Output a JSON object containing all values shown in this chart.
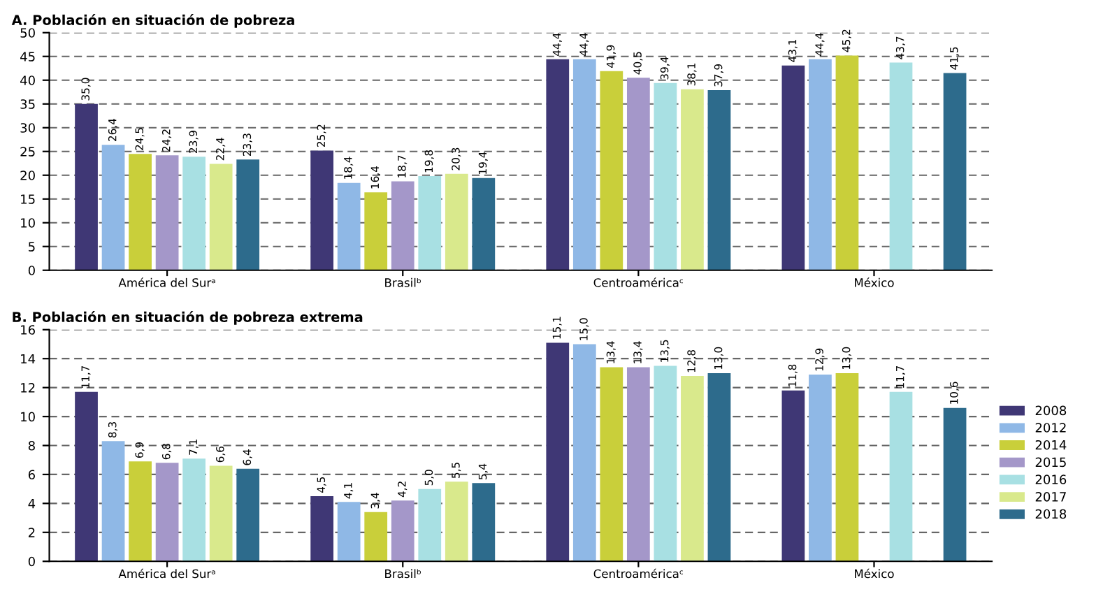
{
  "chart_data": [
    {
      "type": "bar",
      "title": "A. Población en situación de pobreza",
      "categories": [
        "América del Surᵃ",
        "Brasilᵇ",
        "Centroaméricaᶜ",
        "México"
      ],
      "ylim": [
        0,
        50
      ],
      "yticks": [
        0,
        5,
        10,
        15,
        20,
        25,
        30,
        35,
        40,
        45,
        50
      ],
      "grid": "y",
      "legend": "right",
      "series": [
        {
          "name": "2008",
          "color": "#3f3775",
          "values": [
            35.0,
            25.2,
            44.4,
            43.1
          ],
          "value_labels": [
            "35,0",
            "25,2",
            "44,4",
            "43,1"
          ]
        },
        {
          "name": "2012",
          "color": "#8fb8e6",
          "values": [
            26.4,
            18.4,
            44.4,
            44.4
          ],
          "value_labels": [
            "26,4",
            "18,4",
            "44,4",
            "44,4"
          ]
        },
        {
          "name": "2014",
          "color": "#c9cf3a",
          "values": [
            24.5,
            16.4,
            41.9,
            45.2
          ],
          "value_labels": [
            "24,5",
            "16,4",
            "41,9",
            "45,2"
          ]
        },
        {
          "name": "2015",
          "color": "#a497c9",
          "values": [
            24.2,
            18.7,
            40.5,
            null
          ],
          "value_labels": [
            "24,2",
            "18,7",
            "40,5",
            null
          ]
        },
        {
          "name": "2016",
          "color": "#a8e0e3",
          "values": [
            23.9,
            19.8,
            39.4,
            43.7
          ],
          "value_labels": [
            "23,9",
            "19,8",
            "39,4",
            "43,7"
          ]
        },
        {
          "name": "2017",
          "color": "#d9e98c",
          "values": [
            22.4,
            20.3,
            38.1,
            null
          ],
          "value_labels": [
            "22,4",
            "20,3",
            "38,1",
            null
          ]
        },
        {
          "name": "2018",
          "color": "#2d6b8c",
          "values": [
            23.3,
            19.4,
            37.9,
            41.5
          ],
          "value_labels": [
            "23,3",
            "19,4",
            "37,9",
            "41,5"
          ]
        }
      ]
    },
    {
      "type": "bar",
      "title": "B. Población en situación de pobreza extrema",
      "categories": [
        "América del Surᵃ",
        "Brasilᵇ",
        "Centroaméricaᶜ",
        "México"
      ],
      "ylim": [
        0,
        16
      ],
      "yticks": [
        0,
        2,
        4,
        6,
        8,
        10,
        12,
        14,
        16
      ],
      "grid": "y",
      "legend": false,
      "series": [
        {
          "name": "2008",
          "color": "#3f3775",
          "values": [
            11.7,
            4.5,
            15.1,
            11.8
          ],
          "value_labels": [
            "11,7",
            "4,5",
            "15,1",
            "11,8"
          ]
        },
        {
          "name": "2012",
          "color": "#8fb8e6",
          "values": [
            8.3,
            4.1,
            15.0,
            12.9
          ],
          "value_labels": [
            "8,3",
            "4,1",
            "15,0",
            "12,9"
          ]
        },
        {
          "name": "2014",
          "color": "#c9cf3a",
          "values": [
            6.9,
            3.4,
            13.4,
            13.0
          ],
          "value_labels": [
            "6,9",
            "3,4",
            "13,4",
            "13,0"
          ]
        },
        {
          "name": "2015",
          "color": "#a497c9",
          "values": [
            6.8,
            4.2,
            13.4,
            null
          ],
          "value_labels": [
            "6,8",
            "4,2",
            "13,4",
            null
          ]
        },
        {
          "name": "2016",
          "color": "#a8e0e3",
          "values": [
            7.1,
            5.0,
            13.5,
            11.7
          ],
          "value_labels": [
            "7,1",
            "5,0",
            "13,5",
            "11,7"
          ]
        },
        {
          "name": "2017",
          "color": "#d9e98c",
          "values": [
            6.6,
            5.5,
            12.8,
            null
          ],
          "value_labels": [
            "6,6",
            "5,5",
            "12,8",
            null
          ]
        },
        {
          "name": "2018",
          "color": "#2d6b8c",
          "values": [
            6.4,
            5.4,
            13.0,
            10.6
          ],
          "value_labels": [
            "6,4",
            "5,4",
            "13,0",
            "10,6"
          ]
        }
      ]
    }
  ]
}
